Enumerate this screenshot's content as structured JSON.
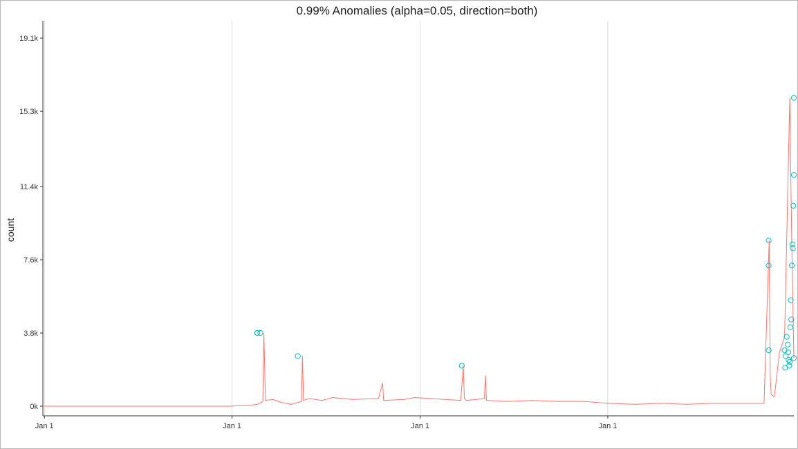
{
  "chart_data": {
    "type": "line",
    "title": "0.99% Anomalies (alpha=0.05, direction=both)",
    "xlabel": "",
    "ylabel": "count",
    "x_tick_labels": [
      "Jan  1",
      "Jan  1",
      "Jan  1",
      "Jan  1"
    ],
    "x_ticks_days": [
      0,
      365,
      731,
      1096
    ],
    "xlim_days": [
      -3,
      1458
    ],
    "y_ticks": [
      0,
      3800,
      7600,
      11400,
      15300,
      19100
    ],
    "y_tick_labels": [
      "0k",
      "3.8k",
      "7.6k",
      "11.4k",
      "15.3k",
      "19.1k"
    ],
    "ylim": [
      -500,
      20000
    ],
    "grid": "vertical-major",
    "colors": {
      "line": "#f8766d",
      "anomaly": "#00bfc4",
      "grid": "#d9d9d9"
    },
    "series": [
      {
        "name": "count",
        "x_days": [
          0,
          200,
          360,
          400,
          415,
          425,
          427,
          430,
          445,
          460,
          480,
          500,
          502,
          504,
          515,
          540,
          560,
          600,
          650,
          658,
          660,
          700,
          720,
          750,
          780,
          810,
          815,
          817,
          820,
          840,
          856,
          858,
          860,
          900,
          950,
          1000,
          1050,
          1095,
          1150,
          1200,
          1250,
          1300,
          1350,
          1400,
          1410,
          1412,
          1414,
          1420,
          1430,
          1440,
          1450,
          1452,
          1454,
          1456,
          1458
        ],
        "values": [
          0,
          0,
          0,
          50,
          100,
          250,
          3800,
          300,
          350,
          200,
          100,
          250,
          2600,
          300,
          400,
          300,
          450,
          350,
          400,
          1200,
          300,
          350,
          450,
          400,
          350,
          300,
          2100,
          400,
          300,
          350,
          400,
          1600,
          300,
          250,
          300,
          250,
          250,
          150,
          100,
          150,
          100,
          150,
          150,
          150,
          8600,
          1500,
          600,
          500,
          2800,
          3600,
          16000,
          12100,
          8400,
          5500,
          2500
        ]
      }
    ],
    "anomalies": {
      "x_days": [
        414,
        414,
        414,
        420,
        493,
        812,
        1409,
        1409,
        1409,
        1440,
        1441,
        1442,
        1444,
        1446,
        1447,
        1448,
        1449,
        1450,
        1451,
        1452,
        1453,
        1454,
        1455,
        1456,
        1457,
        1458,
        1458,
        1458
      ],
      "values": [
        3800,
        3800,
        3800,
        3800,
        2600,
        2100,
        8600,
        7300,
        2900,
        2900,
        2000,
        2600,
        3600,
        3200,
        2800,
        2400,
        2100,
        2300,
        4100,
        5500,
        4500,
        7300,
        8400,
        8200,
        10400,
        12000,
        16000,
        2500
      ]
    }
  }
}
